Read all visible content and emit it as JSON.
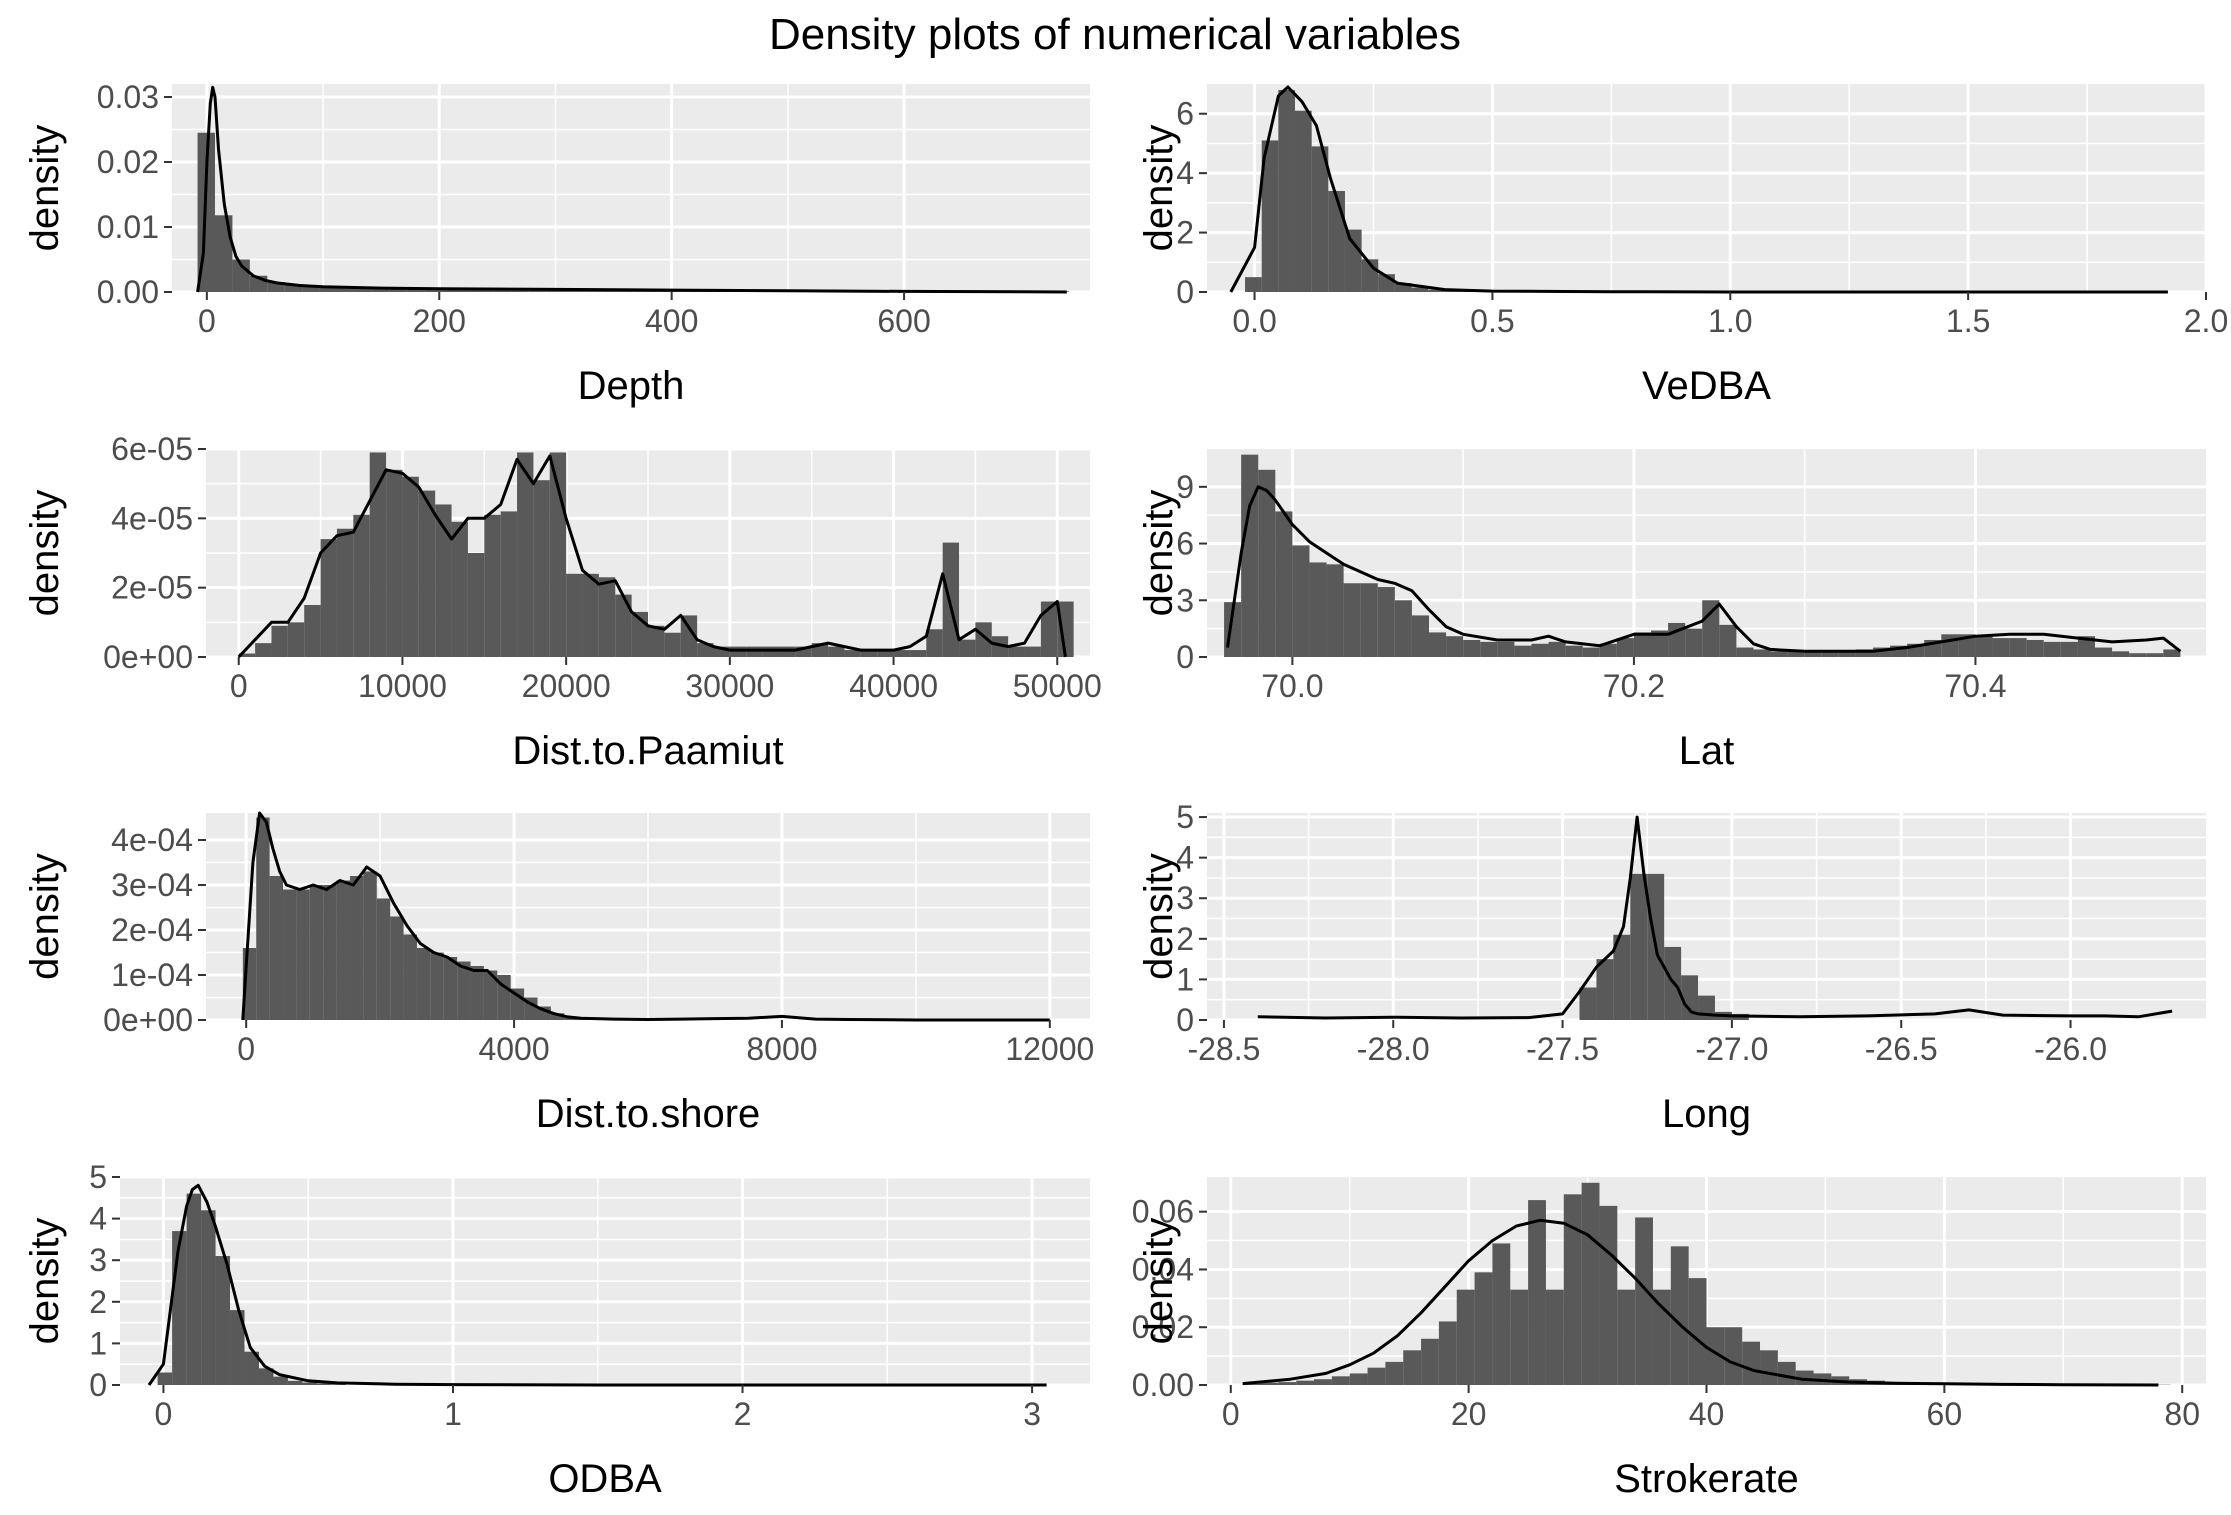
{
  "title": "Density plots of numerical variables",
  "colors": {
    "panel_bg": "#ebebeb",
    "grid": "#ffffff",
    "bars": "#595959",
    "density_line": "#000000",
    "tick_text": "#4d4d4d"
  },
  "chart_data": [
    {
      "type": "bar",
      "xlabel": "Depth",
      "ylabel": "density",
      "xlim": [
        -30,
        760
      ],
      "ylim": [
        0,
        0.032
      ],
      "xticks": [
        0,
        200,
        400,
        600
      ],
      "xtick_labels": [
        "0",
        "200",
        "400",
        "600"
      ],
      "yticks": [
        0,
        0.01,
        0.02,
        0.03
      ],
      "ytick_labels": [
        "0.00",
        "0.01",
        "0.02",
        "0.03"
      ],
      "bins": {
        "start": -8,
        "width": 15,
        "values": [
          0.0245,
          0.0118,
          0.005,
          0.0025,
          0.0015,
          0.0012,
          0.001,
          0.0009,
          0.0008,
          0.0007,
          0.0006,
          0.0006,
          0.0005,
          0.0005,
          0.0005,
          0.0004,
          0.0004,
          0.0004,
          0.0004,
          0.0004,
          0.0003,
          0.0003,
          0.0003,
          0.0003,
          0.0003,
          0.0003,
          0.0003,
          0.0003,
          0.0003,
          0.0003,
          0.0003,
          0.0003,
          0.0002,
          0.0002,
          0.0002,
          0.0002,
          0.0002,
          0.0002,
          0.0002,
          0.0002,
          0.0002,
          0.0002,
          0.0002,
          0.0002,
          0.0002,
          0.0002,
          0.0002,
          0.0001,
          0.0001,
          0.0001
        ]
      },
      "density": {
        "x": [
          -8,
          -3,
          0,
          3,
          5,
          7,
          10,
          15,
          20,
          25,
          30,
          40,
          50,
          60,
          80,
          100,
          150,
          200,
          300,
          400,
          500,
          600,
          700,
          740
        ],
        "y": [
          0,
          0.006,
          0.02,
          0.029,
          0.0315,
          0.03,
          0.022,
          0.0135,
          0.0085,
          0.0055,
          0.004,
          0.0025,
          0.0018,
          0.0014,
          0.001,
          0.0008,
          0.0006,
          0.0005,
          0.0004,
          0.0003,
          0.0002,
          0.0001,
          5e-05,
          0
        ]
      }
    },
    {
      "type": "bar",
      "xlabel": "VeDBA",
      "ylabel": "density",
      "xlim": [
        -0.1,
        2.0
      ],
      "ylim": [
        0,
        7
      ],
      "xticks": [
        0,
        0.5,
        1.0,
        1.5,
        2.0
      ],
      "xtick_labels": [
        "0.0",
        "0.5",
        "1.0",
        "1.5",
        "2.0"
      ],
      "yticks": [
        0,
        2,
        4,
        6
      ],
      "ytick_labels": [
        "0",
        "2",
        "4",
        "6"
      ],
      "bins": {
        "start": -0.02,
        "width": 0.035,
        "values": [
          0.5,
          5.1,
          6.8,
          6.1,
          4.9,
          3.4,
          2.1,
          1.1,
          0.6,
          0.3,
          0.15,
          0.08,
          0.05,
          0.03,
          0.02,
          0.01
        ]
      },
      "density": {
        "x": [
          -0.05,
          0.0,
          0.02,
          0.05,
          0.07,
          0.1,
          0.13,
          0.16,
          0.2,
          0.25,
          0.3,
          0.4,
          0.5,
          0.75,
          1.0,
          1.5,
          1.92
        ],
        "y": [
          0,
          1.5,
          4.5,
          6.6,
          6.9,
          6.4,
          5.6,
          3.8,
          1.8,
          0.8,
          0.3,
          0.08,
          0.03,
          0.01,
          0,
          0,
          0
        ]
      }
    },
    {
      "type": "bar",
      "xlabel": "Dist.to.Paamiut",
      "ylabel": "density",
      "xlim": [
        -2000,
        52000
      ],
      "ylim": [
        0,
        6e-05
      ],
      "xticks": [
        0,
        10000,
        20000,
        30000,
        40000,
        50000
      ],
      "xtick_labels": [
        "0",
        "10000",
        "20000",
        "30000",
        "40000",
        "50000"
      ],
      "yticks": [
        0,
        2e-05,
        4e-05,
        6e-05
      ],
      "ytick_labels": [
        "0e+00",
        "2e-05",
        "4e-05",
        "6e-05"
      ],
      "bins": {
        "start": 0,
        "width": 1000,
        "values": [
          1e-06,
          4e-06,
          9e-06,
          1e-05,
          1.5e-05,
          3.4e-05,
          3.7e-05,
          4.1e-05,
          5.9e-05,
          5.4e-05,
          5.2e-05,
          4.8e-05,
          4.4e-05,
          3.9e-05,
          3e-05,
          4.1e-05,
          4.2e-05,
          5.9e-05,
          5.1e-05,
          5.9e-05,
          2.4e-05,
          2.4e-05,
          2.3e-05,
          1.8e-05,
          1.3e-05,
          9e-06,
          7e-06,
          1.2e-05,
          4e-06,
          3e-06,
          3e-06,
          3e-06,
          3e-06,
          3e-06,
          3e-06,
          4e-06,
          3e-06,
          2e-06,
          2e-06,
          2e-06,
          2e-06,
          2e-06,
          8e-06,
          3.3e-05,
          5e-06,
          1e-05,
          6e-06,
          3e-06,
          3e-06,
          1.6e-05,
          1.6e-05
        ]
      },
      "density": {
        "x": [
          0,
          1000,
          2000,
          3000,
          4000,
          5000,
          6000,
          7000,
          8000,
          9000,
          10000,
          11000,
          12000,
          13000,
          14000,
          15000,
          16000,
          17000,
          18000,
          19000,
          20000,
          21000,
          22000,
          23000,
          24000,
          25000,
          26000,
          27000,
          28000,
          29000,
          30000,
          32000,
          34000,
          36000,
          38000,
          40000,
          41000,
          42000,
          43000,
          44000,
          45000,
          46000,
          47000,
          48000,
          49000,
          50000,
          50500
        ],
        "y": [
          0,
          5e-06,
          1e-05,
          1e-05,
          1.7e-05,
          3e-05,
          3.5e-05,
          3.6e-05,
          4.5e-05,
          5.4e-05,
          5.3e-05,
          4.9e-05,
          4.1e-05,
          3.4e-05,
          4e-05,
          4e-05,
          4.4e-05,
          5.7e-05,
          5e-05,
          5.8e-05,
          4e-05,
          2.5e-05,
          2.1e-05,
          2.2e-05,
          1.3e-05,
          9e-06,
          8e-06,
          1.2e-05,
          5e-06,
          3e-06,
          2e-06,
          2e-06,
          2e-06,
          4e-06,
          2e-06,
          2e-06,
          3e-06,
          6e-06,
          2.4e-05,
          5e-06,
          8e-06,
          4e-06,
          3e-06,
          4e-06,
          1.2e-05,
          1.6e-05,
          0
        ]
      }
    },
    {
      "type": "bar",
      "xlabel": "Lat",
      "ylabel": "density",
      "xlim": [
        69.95,
        70.535
      ],
      "ylim": [
        0,
        11
      ],
      "xticks": [
        70.0,
        70.2,
        70.4
      ],
      "xtick_labels": [
        "70.0",
        "70.2",
        "70.4"
      ],
      "yticks": [
        0,
        3,
        6,
        9
      ],
      "ytick_labels": [
        "0",
        "3",
        "6",
        "9"
      ],
      "bins": {
        "start": 69.96,
        "width": 0.01,
        "values": [
          2.9,
          10.7,
          9.9,
          7.7,
          5.9,
          5.0,
          4.9,
          3.9,
          3.9,
          3.7,
          3.0,
          2.2,
          1.3,
          1.1,
          0.9,
          0.8,
          0.8,
          0.6,
          0.7,
          0.8,
          0.6,
          0.5,
          0.7,
          1.0,
          1.3,
          1.4,
          1.8,
          1.5,
          3.0,
          1.7,
          0.5,
          0.4,
          0.3,
          0.3,
          0.3,
          0.3,
          0.3,
          0.4,
          0.5,
          0.6,
          0.7,
          0.9,
          1.2,
          1.2,
          1.1,
          1.0,
          1.0,
          0.9,
          0.8,
          0.8,
          1.1,
          0.5,
          0.3,
          0.2,
          0.2,
          0.4
        ]
      },
      "density": {
        "x": [
          69.962,
          69.97,
          69.975,
          69.98,
          69.985,
          69.99,
          70.0,
          70.01,
          70.02,
          70.03,
          70.04,
          70.05,
          70.06,
          70.07,
          70.08,
          70.09,
          70.1,
          70.12,
          70.14,
          70.15,
          70.16,
          70.18,
          70.2,
          70.22,
          70.24,
          70.25,
          70.26,
          70.27,
          70.28,
          70.3,
          70.32,
          70.34,
          70.36,
          70.38,
          70.4,
          70.42,
          70.44,
          70.46,
          70.48,
          70.5,
          70.51,
          70.52
        ],
        "y": [
          0.5,
          5.5,
          8.0,
          9.0,
          8.8,
          8.3,
          7.0,
          6.1,
          5.5,
          4.9,
          4.5,
          4.1,
          3.9,
          3.5,
          2.5,
          1.6,
          1.2,
          0.9,
          0.9,
          1.1,
          0.8,
          0.6,
          1.2,
          1.2,
          1.9,
          2.8,
          1.6,
          0.7,
          0.4,
          0.3,
          0.3,
          0.3,
          0.5,
          0.8,
          1.1,
          1.2,
          1.2,
          1.0,
          0.8,
          0.9,
          1.0,
          0.3
        ]
      }
    },
    {
      "type": "bar",
      "xlabel": "Dist.to.shore",
      "ylabel": "density",
      "xlim": [
        -600,
        12600
      ],
      "ylim": [
        0,
        0.00046
      ],
      "xticks": [
        0,
        4000,
        8000,
        12000
      ],
      "xtick_labels": [
        "0",
        "4000",
        "8000",
        "12000"
      ],
      "yticks": [
        0,
        0.0001,
        0.0002,
        0.0003,
        0.0004
      ],
      "ytick_labels": [
        "0e+00",
        "1e-04",
        "2e-04",
        "3e-04",
        "4e-04"
      ],
      "bins": {
        "start": -50,
        "width": 200,
        "values": [
          0.00016,
          0.00045,
          0.00032,
          0.00029,
          0.00029,
          0.0003,
          0.0003,
          0.00031,
          0.00032,
          0.00033,
          0.00027,
          0.00023,
          0.00019,
          0.00016,
          0.00015,
          0.00014,
          0.00013,
          0.00012,
          0.00011,
          0.0001,
          7e-05,
          5e-05,
          3e-05,
          1.5e-05,
          6e-06,
          2e-06,
          1e-06
        ]
      },
      "density": {
        "x": [
          -50,
          0,
          100,
          200,
          300,
          400,
          500,
          600,
          800,
          1000,
          1200,
          1400,
          1600,
          1800,
          2000,
          2200,
          2400,
          2600,
          2800,
          3000,
          3200,
          3400,
          3600,
          3800,
          4000,
          4200,
          4400,
          4600,
          4800,
          5000,
          5500,
          6000,
          6500,
          7000,
          7500,
          8000,
          8500,
          9000,
          10000,
          11000,
          12000
        ],
        "y": [
          0,
          0.00012,
          0.00035,
          0.00046,
          0.00044,
          0.00038,
          0.00033,
          0.0003,
          0.00029,
          0.0003,
          0.00029,
          0.00031,
          0.0003,
          0.00034,
          0.00032,
          0.00026,
          0.00021,
          0.00017,
          0.00015,
          0.00014,
          0.00012,
          0.00011,
          0.00011,
          8e-05,
          6e-05,
          4e-05,
          2.5e-05,
          1.4e-05,
          7e-06,
          4e-06,
          2e-06,
          1e-06,
          2e-06,
          3e-06,
          4e-06,
          8e-06,
          2e-06,
          1e-06,
          0,
          0,
          0
        ]
      }
    },
    {
      "type": "bar",
      "xlabel": "Long",
      "ylabel": "density",
      "xlim": [
        -28.55,
        -25.6
      ],
      "ylim": [
        0,
        5.1
      ],
      "xticks": [
        -28.5,
        -28.0,
        -27.5,
        -27.0,
        -26.5,
        -26.0
      ],
      "xtick_labels": [
        "-28.5",
        "-28.0",
        "-27.5",
        "-27.0",
        "-26.5",
        "-26.0"
      ],
      "yticks": [
        0,
        1,
        2,
        3,
        4,
        5
      ],
      "ytick_labels": [
        "0",
        "1",
        "2",
        "3",
        "4",
        "5"
      ],
      "bins": {
        "start": -27.45,
        "width": 0.05,
        "values": [
          0.8,
          1.5,
          2.1,
          3.6,
          3.6,
          1.8,
          1.1,
          0.6,
          0.2,
          0.15
        ]
      },
      "density": {
        "x": [
          -28.4,
          -28.2,
          -28.0,
          -27.8,
          -27.6,
          -27.5,
          -27.45,
          -27.4,
          -27.35,
          -27.32,
          -27.3,
          -27.28,
          -27.26,
          -27.24,
          -27.22,
          -27.2,
          -27.18,
          -27.16,
          -27.14,
          -27.12,
          -27.1,
          -27.05,
          -27.0,
          -26.8,
          -26.6,
          -26.4,
          -26.3,
          -26.2,
          -26.0,
          -25.9,
          -25.8,
          -25.7
        ],
        "y": [
          0.08,
          0.05,
          0.07,
          0.05,
          0.06,
          0.15,
          0.7,
          1.3,
          1.7,
          2.3,
          3.5,
          5.0,
          3.6,
          2.5,
          1.6,
          1.3,
          1.0,
          0.8,
          0.4,
          0.2,
          0.15,
          0.12,
          0.1,
          0.08,
          0.1,
          0.15,
          0.25,
          0.12,
          0.1,
          0.1,
          0.08,
          0.22
        ]
      }
    },
    {
      "type": "bar",
      "xlabel": "ODBA",
      "ylabel": "density",
      "xlim": [
        -0.15,
        3.2
      ],
      "ylim": [
        0,
        5
      ],
      "xticks": [
        0,
        1,
        2,
        3
      ],
      "xtick_labels": [
        "0",
        "1",
        "2",
        "3"
      ],
      "yticks": [
        0,
        1,
        2,
        3,
        4,
        5
      ],
      "ytick_labels": [
        "0",
        "1",
        "2",
        "3",
        "4",
        "5"
      ],
      "bins": {
        "start": -0.02,
        "width": 0.05,
        "values": [
          0.3,
          3.7,
          4.6,
          4.2,
          3.1,
          1.8,
          0.8,
          0.4,
          0.2,
          0.1,
          0.06,
          0.04,
          0.02
        ]
      },
      "density": {
        "x": [
          -0.05,
          0.0,
          0.05,
          0.08,
          0.1,
          0.12,
          0.15,
          0.18,
          0.22,
          0.26,
          0.3,
          0.35,
          0.4,
          0.5,
          0.6,
          0.8,
          1.0,
          1.5,
          2.0,
          2.5,
          3.05
        ],
        "y": [
          0,
          0.5,
          3.2,
          4.3,
          4.7,
          4.8,
          4.4,
          3.8,
          2.9,
          1.8,
          0.9,
          0.45,
          0.25,
          0.1,
          0.05,
          0.02,
          0.01,
          0,
          0,
          0,
          0
        ]
      }
    },
    {
      "type": "bar",
      "xlabel": "Strokerate",
      "ylabel": "density",
      "xlim": [
        -2,
        82
      ],
      "ylim": [
        0,
        0.072
      ],
      "xticks": [
        0,
        20,
        40,
        60,
        80
      ],
      "xtick_labels": [
        "0",
        "20",
        "40",
        "60",
        "80"
      ],
      "yticks": [
        0,
        0.02,
        0.04,
        0.06
      ],
      "ytick_labels": [
        "0.00",
        "0.02",
        "0.04",
        "0.06"
      ],
      "bins": {
        "start": 1,
        "width": 1.5,
        "values": [
          0.0005,
          0.0008,
          0.001,
          0.0015,
          0.002,
          0.003,
          0.004,
          0.006,
          0.008,
          0.012,
          0.016,
          0.022,
          0.033,
          0.039,
          0.049,
          0.033,
          0.064,
          0.033,
          0.066,
          0.07,
          0.062,
          0.033,
          0.058,
          0.033,
          0.048,
          0.037,
          0.02,
          0.02,
          0.015,
          0.012,
          0.008,
          0.005,
          0.004,
          0.003,
          0.002,
          0.0015,
          0.001,
          0.0008,
          0.0005,
          0.0004,
          0.0003,
          0.0002,
          0.0002,
          0.0001,
          0.0001,
          0.0001,
          0.0001,
          0.0001,
          0.0001,
          0.0001,
          0.0001,
          0.0001
        ]
      },
      "density": {
        "x": [
          1,
          5,
          8,
          10,
          12,
          14,
          16,
          18,
          20,
          22,
          24,
          26,
          28,
          30,
          32,
          34,
          36,
          38,
          40,
          42,
          44,
          48,
          52,
          56,
          60,
          65,
          70,
          78
        ],
        "y": [
          0.0005,
          0.002,
          0.004,
          0.007,
          0.011,
          0.017,
          0.025,
          0.034,
          0.043,
          0.05,
          0.055,
          0.057,
          0.056,
          0.052,
          0.045,
          0.037,
          0.028,
          0.02,
          0.013,
          0.008,
          0.005,
          0.002,
          0.001,
          0.0006,
          0.0004,
          0.0002,
          0.0001,
          0
        ]
      }
    }
  ]
}
